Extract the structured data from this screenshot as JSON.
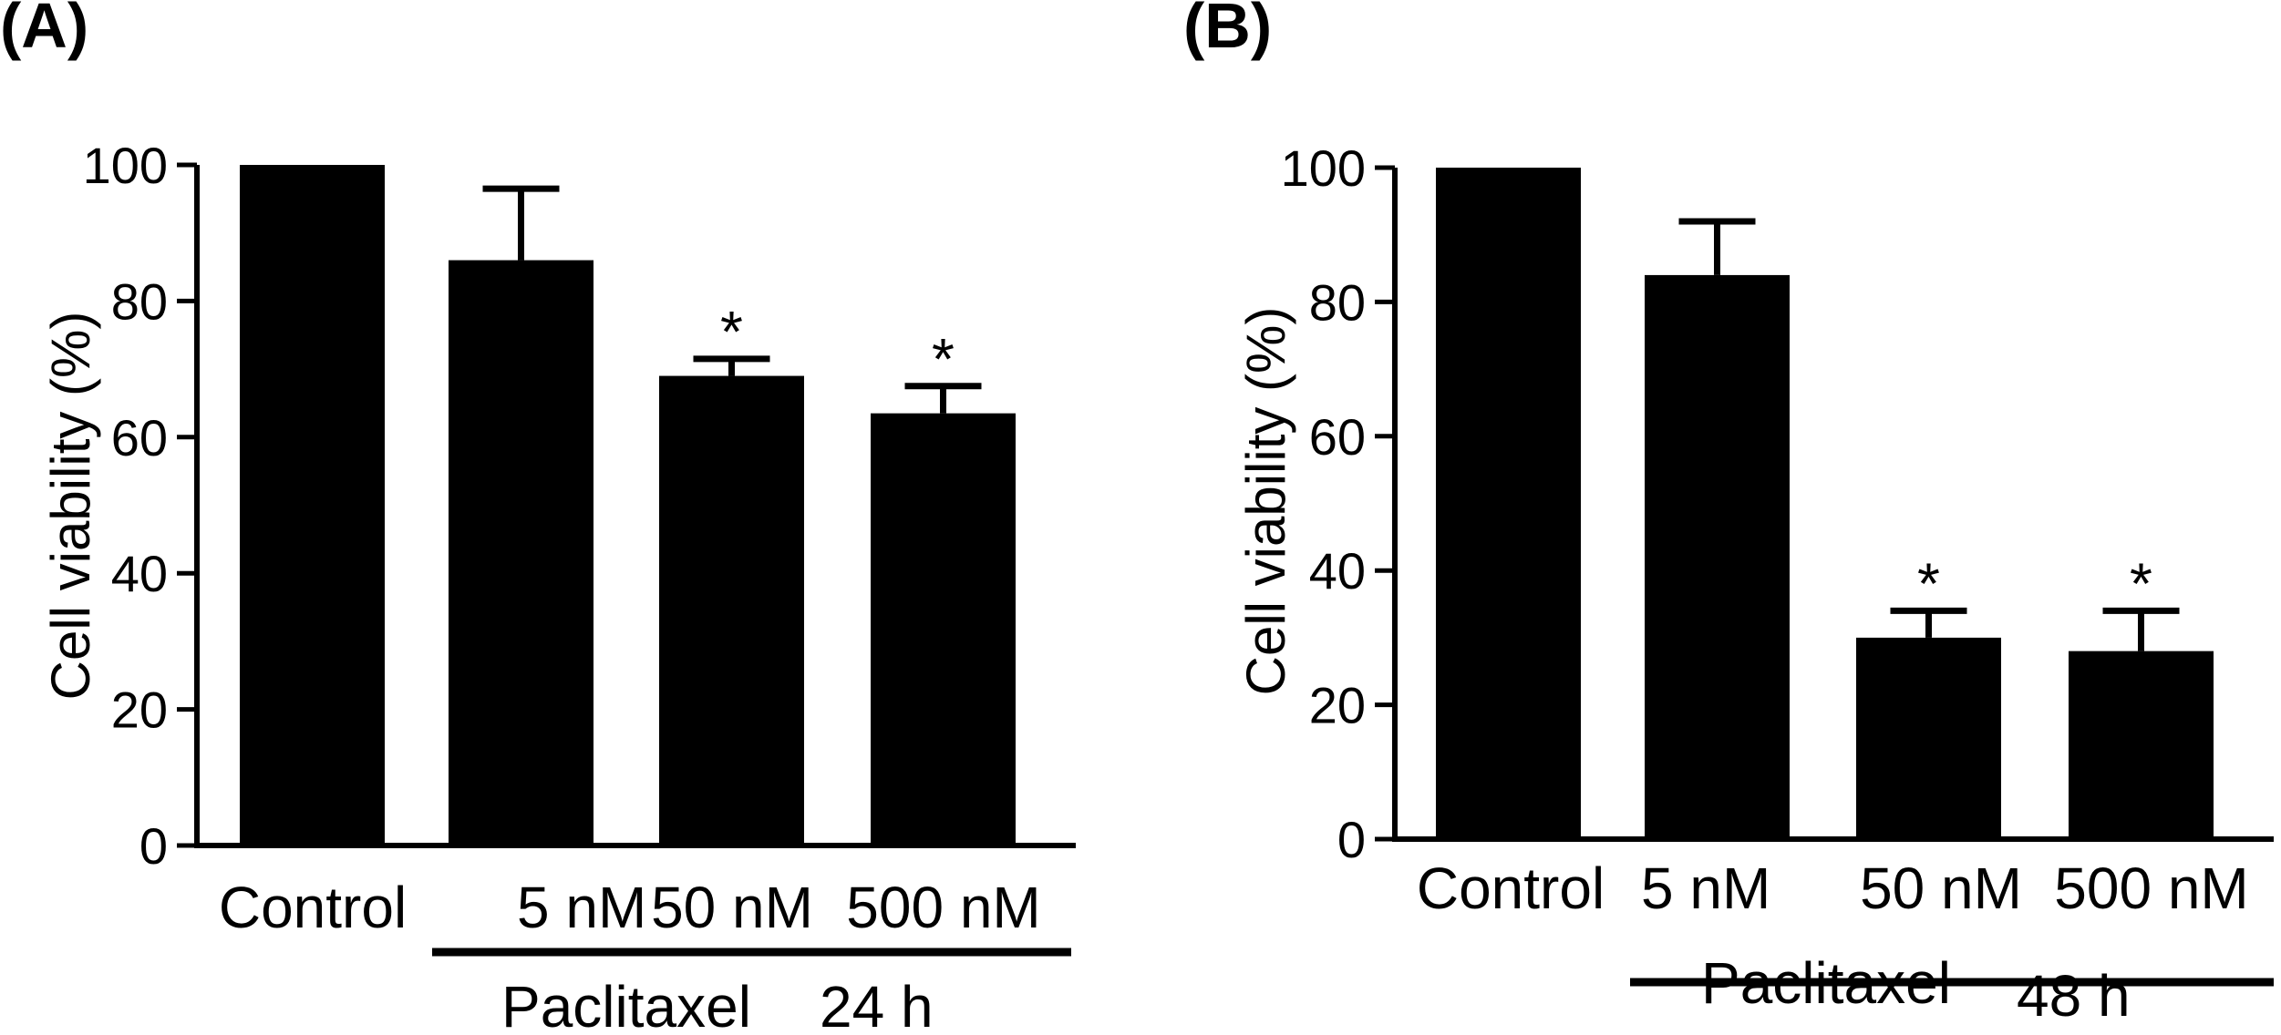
{
  "chart_data": [
    {
      "type": "bar",
      "panel_label": "(A)",
      "ylabel": "Cell viability (%)",
      "xlabel": "",
      "ylim": [
        0,
        100
      ],
      "yticks": [
        0,
        20,
        40,
        60,
        80,
        100
      ],
      "categories": [
        "Control",
        "5 nM",
        "50 nM",
        "500 nM"
      ],
      "values": [
        100,
        86,
        69,
        63.5
      ],
      "error_upper": [
        0,
        10.5,
        2.5,
        4
      ],
      "significance": [
        "",
        "",
        "*",
        "*"
      ],
      "group_label": "Paclitaxel",
      "time_label": "24 h",
      "grid": false,
      "bar_color": "#000000"
    },
    {
      "type": "bar",
      "panel_label": "(B)",
      "ylabel": "Cell viability (%)",
      "xlabel": "",
      "ylim": [
        0,
        100
      ],
      "yticks": [
        0,
        20,
        40,
        60,
        80,
        100
      ],
      "categories": [
        "Control",
        "5 nM",
        "50 nM",
        "500 nM"
      ],
      "values": [
        100,
        84,
        30,
        28
      ],
      "error_upper": [
        0,
        8,
        4,
        6
      ],
      "significance": [
        "",
        "",
        "*",
        "*"
      ],
      "group_label": "Paclitaxel",
      "time_label": "48 h",
      "grid": false,
      "bar_color": "#000000"
    }
  ]
}
